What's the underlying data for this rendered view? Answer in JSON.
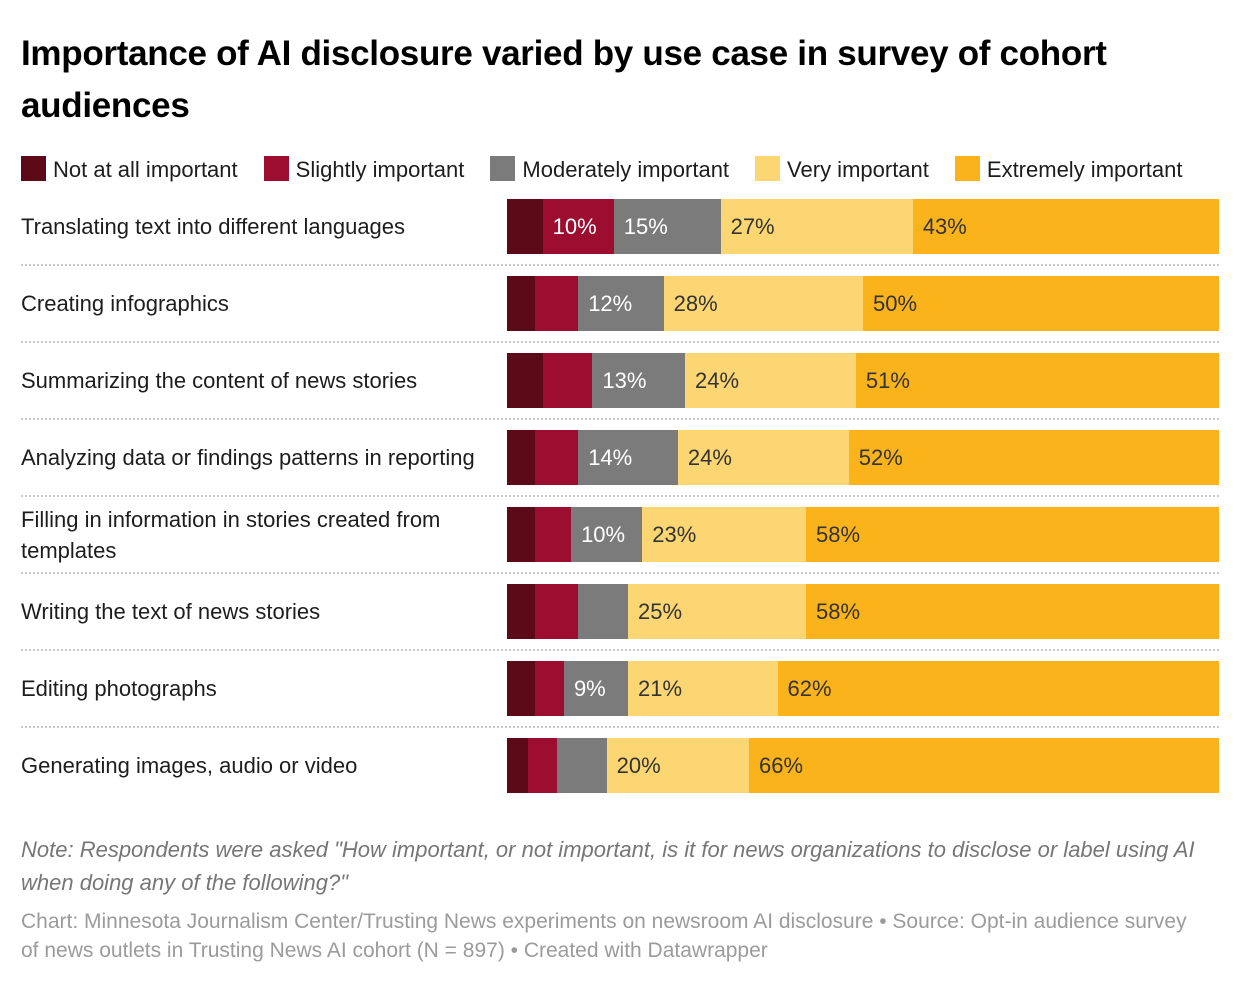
{
  "title": "Importance of AI disclosure varied by use case in survey of cohort audiences",
  "legend": [
    {
      "label": "Not at all important",
      "color": "#5d0a18"
    },
    {
      "label": "Slightly important",
      "color": "#9c0d2f"
    },
    {
      "label": "Moderately important",
      "color": "#7b7b7b"
    },
    {
      "label": "Very important",
      "color": "#fcd672"
    },
    {
      "label": "Extremely important",
      "color": "#fbb31b"
    }
  ],
  "chart_data": {
    "type": "bar",
    "stacked": true,
    "orientation": "horizontal",
    "unit": "%",
    "xlim": [
      0,
      100
    ],
    "legend_position": "top",
    "grid": false,
    "categories": [
      "Translating text into different languages",
      "Creating infographics",
      "Summarizing the content of news stories",
      "Analyzing data or findings patterns in reporting",
      "Filling in information in stories created from templates",
      "Writing the text of news stories",
      "Editing photographs",
      "Generating images, audio or video"
    ],
    "series": [
      {
        "name": "Not at all important",
        "color": "#5d0a18",
        "text_color": "#ffffff",
        "values": [
          5,
          4,
          5,
          4,
          4,
          4,
          4,
          3
        ]
      },
      {
        "name": "Slightly important",
        "color": "#9c0d2f",
        "text_color": "#ffffff",
        "values": [
          10,
          6,
          7,
          6,
          5,
          6,
          4,
          4
        ]
      },
      {
        "name": "Moderately important",
        "color": "#7b7b7b",
        "text_color": "#ffffff",
        "values": [
          15,
          12,
          13,
          14,
          10,
          7,
          9,
          7
        ]
      },
      {
        "name": "Very important",
        "color": "#fcd672",
        "text_color": "#333333",
        "values": [
          27,
          28,
          24,
          24,
          23,
          25,
          21,
          20
        ]
      },
      {
        "name": "Extremely important",
        "color": "#fbb31b",
        "text_color": "#333333",
        "values": [
          43,
          50,
          51,
          52,
          58,
          58,
          62,
          66
        ]
      }
    ],
    "bar_labels": [
      [
        "",
        "10%",
        "15%",
        "27%",
        "43%"
      ],
      [
        "",
        "",
        "12%",
        "28%",
        "50%"
      ],
      [
        "",
        "",
        "13%",
        "24%",
        "51%"
      ],
      [
        "",
        "",
        "14%",
        "24%",
        "52%"
      ],
      [
        "",
        "",
        "10%",
        "23%",
        "58%"
      ],
      [
        "",
        "",
        "",
        "25%",
        "58%"
      ],
      [
        "",
        "",
        "9%",
        "21%",
        "62%"
      ],
      [
        "",
        "",
        "",
        "20%",
        "66%"
      ]
    ]
  },
  "note": "Note: Respondents were asked \"How important, or not important, is it for news organizations to disclose or label using AI when doing any of the following?\"",
  "credits": "Chart: Minnesota Journalism Center/Trusting News experiments on newsroom AI disclosure • Source: Opt-in audience survey of news outlets in Trusting News AI cohort (N = 897) • Created with Datawrapper"
}
